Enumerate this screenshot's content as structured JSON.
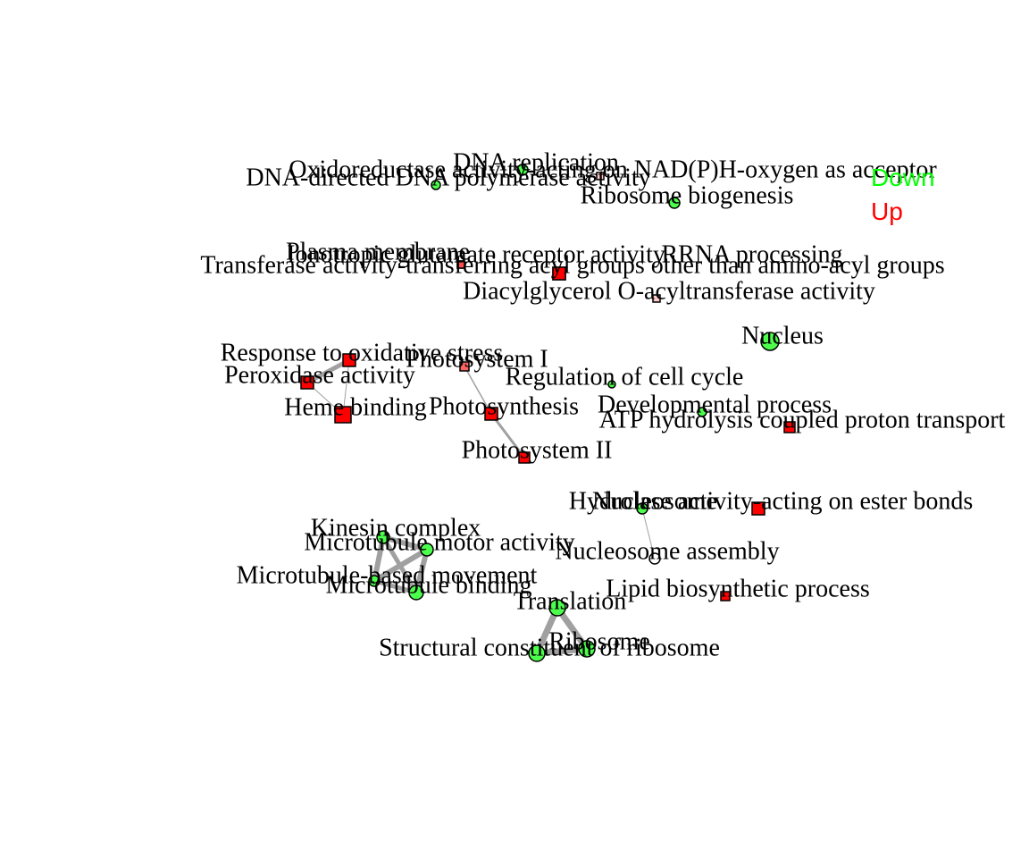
{
  "legend": [
    {
      "label": "Down",
      "color": "#00ff00"
    },
    {
      "label": "Up",
      "color": "#ff0000"
    }
  ],
  "nodes": [
    {
      "id": "dna_replication",
      "label": "DNA replication",
      "shape": "circle",
      "color": "#4cff4c"
    },
    {
      "id": "oxidoreductase",
      "label": "Oxidoreductase activity-acting on NAD(P)H-oxygen as acceptor",
      "shape": "square",
      "color": "#ffc8c8"
    },
    {
      "id": "dna_polymerase",
      "label": "DNA-directed DNA polymerase activity",
      "shape": "circle",
      "color": "#4cff4c"
    },
    {
      "id": "ribosome_biogenesis",
      "label": "Ribosome biogenesis",
      "shape": "circle",
      "color": "#4cff4c"
    },
    {
      "id": "plasma_membrane",
      "label": "Plasma membrane",
      "shape": "square",
      "color": "#ff4c4c"
    },
    {
      "id": "ionotropic",
      "label": "Ionotropic glutamate receptor activity",
      "shape": "square",
      "color": "#ff4c4c"
    },
    {
      "id": "rrna_processing",
      "label": "RRNA processing",
      "shape": "square",
      "color": "#ff0000"
    },
    {
      "id": "transferase",
      "label": "Transferase activity-transferring acyl groups other than amino-acyl groups",
      "shape": "square",
      "color": "#ff0000"
    },
    {
      "id": "diacylglycerol",
      "label": "Diacylglycerol O-acyltransferase activity",
      "shape": "square",
      "color": "#ffc8c8"
    },
    {
      "id": "nucleus",
      "label": "Nucleus",
      "shape": "circle",
      "color": "#4cff4c"
    },
    {
      "id": "response_oxidative",
      "label": "Response to oxidative stress",
      "shape": "square",
      "color": "#ff0000"
    },
    {
      "id": "photosystem_i",
      "label": "Photosystem I",
      "shape": "square",
      "color": "#ff6464"
    },
    {
      "id": "peroxidase",
      "label": "Peroxidase activity",
      "shape": "square",
      "color": "#ff0000"
    },
    {
      "id": "regulation_cell_cycle",
      "label": "Regulation of cell cycle",
      "shape": "circle",
      "color": "#4cff4c"
    },
    {
      "id": "heme_binding",
      "label": "Heme binding",
      "shape": "square",
      "color": "#ff0000"
    },
    {
      "id": "photosynthesis",
      "label": "Photosynthesis",
      "shape": "square",
      "color": "#ff0000"
    },
    {
      "id": "developmental",
      "label": "Developmental process",
      "shape": "circle",
      "color": "#4cff4c"
    },
    {
      "id": "atp_hydrolysis",
      "label": "ATP hydrolysis coupled proton transport",
      "shape": "square",
      "color": "#ff0000"
    },
    {
      "id": "photosystem_ii",
      "label": "Photosystem II",
      "shape": "square",
      "color": "#ff0000"
    },
    {
      "id": "hydrolase",
      "label": "Hydrolase activity-acting on ester bonds",
      "shape": "square",
      "color": "#ff0000"
    },
    {
      "id": "nucleosome",
      "label": "Nucleosome",
      "shape": "circle",
      "color": "#4cff4c"
    },
    {
      "id": "kinesin_complex",
      "label": "Kinesin complex",
      "shape": "circle",
      "color": "#4cff4c"
    },
    {
      "id": "mt_motor",
      "label": "Microtubule motor activity",
      "shape": "circle",
      "color": "#4cff4c"
    },
    {
      "id": "nucleosome_assembly",
      "label": "Nucleosome assembly",
      "shape": "circle",
      "color": "#ffffff"
    },
    {
      "id": "mt_movement",
      "label": "Microtubule-based movement",
      "shape": "circle",
      "color": "#4cff4c"
    },
    {
      "id": "mt_binding",
      "label": "Microtubule binding",
      "shape": "circle",
      "color": "#4cff4c"
    },
    {
      "id": "lipid_biosynthetic",
      "label": "Lipid biosynthetic process",
      "shape": "square",
      "color": "#ff0000"
    },
    {
      "id": "translation",
      "label": "Translation",
      "shape": "circle",
      "color": "#4cff4c"
    },
    {
      "id": "structural_ribosome",
      "label": "Structural constituent of ribosome",
      "shape": "circle",
      "color": "#4cff4c"
    },
    {
      "id": "ribosome",
      "label": "Ribosome",
      "shape": "circle",
      "color": "#4cff4c"
    }
  ],
  "edges": [
    {
      "source": "response_oxidative",
      "target": "peroxidase"
    },
    {
      "source": "response_oxidative",
      "target": "heme_binding"
    },
    {
      "source": "peroxidase",
      "target": "heme_binding"
    },
    {
      "source": "photosystem_i",
      "target": "photosynthesis"
    },
    {
      "source": "photosynthesis",
      "target": "photosystem_ii"
    },
    {
      "source": "nucleosome",
      "target": "nucleosome_assembly"
    },
    {
      "source": "kinesin_complex",
      "target": "mt_motor"
    },
    {
      "source": "kinesin_complex",
      "target": "mt_movement"
    },
    {
      "source": "kinesin_complex",
      "target": "mt_binding"
    },
    {
      "source": "mt_motor",
      "target": "mt_movement"
    },
    {
      "source": "mt_motor",
      "target": "mt_binding"
    },
    {
      "source": "mt_movement",
      "target": "mt_binding"
    },
    {
      "source": "translation",
      "target": "structural_ribosome"
    },
    {
      "source": "translation",
      "target": "ribosome"
    },
    {
      "source": "structural_ribosome",
      "target": "ribosome"
    }
  ]
}
